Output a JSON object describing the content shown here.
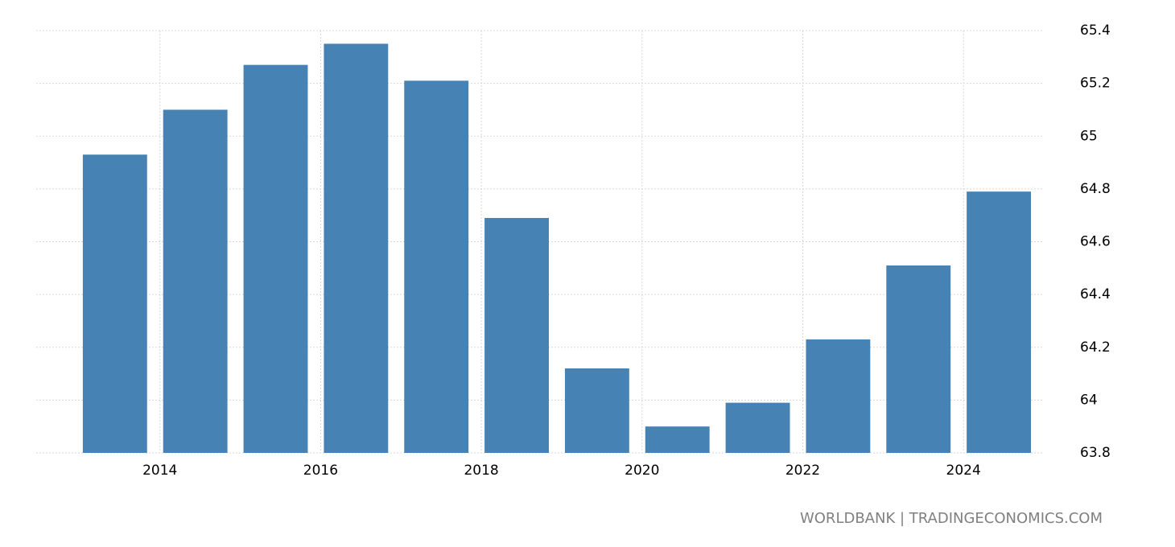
{
  "chart_data": {
    "type": "bar",
    "x": [
      2013,
      2014,
      2015,
      2016,
      2017,
      2018,
      2019,
      2020,
      2021,
      2022,
      2023,
      2024
    ],
    "values": [
      64.93,
      65.1,
      65.27,
      65.35,
      65.21,
      64.69,
      64.12,
      63.9,
      63.99,
      64.23,
      64.51,
      64.79
    ],
    "color": "#4682b4",
    "xlim": [
      2012.46,
      2025
    ],
    "xticks": [
      2014,
      2016,
      2018,
      2020,
      2022,
      2024
    ],
    "ylim": [
      63.8,
      65.4
    ],
    "yticks": [
      63.8,
      64,
      64.2,
      64.4,
      64.6,
      64.8,
      65,
      65.2,
      65.4
    ],
    "grid": true,
    "source": "WORLDBANK | TRADINGECONOMICS.COM"
  }
}
